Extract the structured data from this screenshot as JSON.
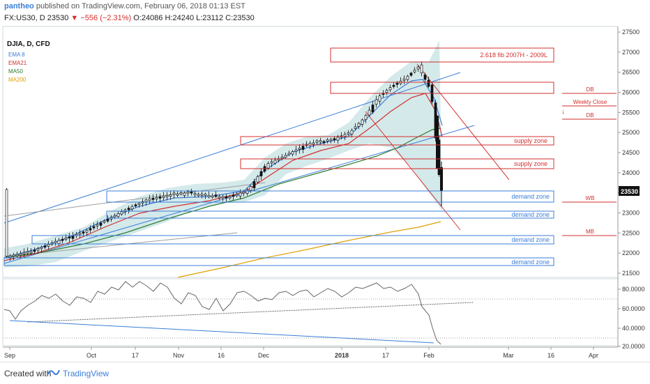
{
  "header": {
    "user": "pantheo",
    "published": "published on TradingView.com, February 06, 2018 01:13 EST",
    "symbol": "FX:US30, D",
    "last": "23530",
    "change": "−556 (−2.31%)",
    "open": "O:24086",
    "high": "H:24240",
    "low": "L:23112",
    "close": "C:23530"
  },
  "legend": {
    "title": "DJIA, D, CFD",
    "items": [
      {
        "label": "EMA 8",
        "color": "#3b7dd8"
      },
      {
        "label": "EMA21",
        "color": "#d32f2f"
      },
      {
        "label": "MA50",
        "color": "#2e7d32"
      },
      {
        "label": "MA200",
        "color": "#e0a000"
      }
    ]
  },
  "price_axis": {
    "ticks": [
      "27500",
      "27000",
      "26500",
      "26000",
      "25500",
      "25000",
      "24500",
      "24000",
      "23500",
      "23000",
      "22500",
      "22000",
      "21500"
    ],
    "last_label": "23530",
    "last_value": 23530
  },
  "rsi_axis": {
    "ticks": [
      "80.0000",
      "60.0000",
      "40.0000",
      "20.0000"
    ]
  },
  "time_axis": {
    "labels": [
      "Sep",
      "Oct",
      "17",
      "Nov",
      "16",
      "Dec",
      "2018",
      "17",
      "Feb",
      "Mar",
      "16",
      "Apr"
    ]
  },
  "zones": [
    {
      "label": "2.618 fib 2007H - 2009L",
      "kind": "fib",
      "color": "#d32f2f"
    },
    {
      "label": "supply zone",
      "kind": "supply",
      "color": "#d32f2f"
    },
    {
      "label": "supply zone",
      "kind": "supply",
      "color": "#d32f2f"
    },
    {
      "label": "demand zone",
      "kind": "demand",
      "color": "#3b7dd8"
    },
    {
      "label": "demand zone",
      "kind": "demand",
      "color": "#3b7dd8"
    },
    {
      "label": "demand zone",
      "kind": "demand",
      "color": "#3b7dd8"
    },
    {
      "label": "demand zone",
      "kind": "demand",
      "color": "#3b7dd8"
    }
  ],
  "levels": [
    {
      "label": "DB",
      "color": "#d32f2f"
    },
    {
      "label": "Weekly Close",
      "color": "#d32f2f"
    },
    {
      "label": "DB",
      "color": "#d32f2f"
    },
    {
      "label": "WB",
      "color": "#d32f2f"
    },
    {
      "label": "MB",
      "color": "#d32f2f"
    }
  ],
  "footer": {
    "created": "Created with",
    "brand": "TradingView"
  },
  "chart_data": {
    "type": "line",
    "title": "DJIA, D, CFD",
    "y_range": [
      21500,
      27500
    ],
    "series": [
      {
        "name": "DJIA",
        "x": [
          "Sep",
          "Oct",
          "Nov",
          "Dec",
          "2018",
          "Feb"
        ],
        "values": [
          21800,
          22500,
          23400,
          24200,
          24800,
          23530
        ]
      },
      {
        "name": "EMA 8",
        "color": "#3b7dd8"
      },
      {
        "name": "EMA21",
        "color": "#d32f2f"
      },
      {
        "name": "MA50",
        "color": "#2e7d32"
      },
      {
        "name": "MA200",
        "color": "#e0a000"
      }
    ],
    "rsi_range": [
      20,
      80
    ]
  }
}
